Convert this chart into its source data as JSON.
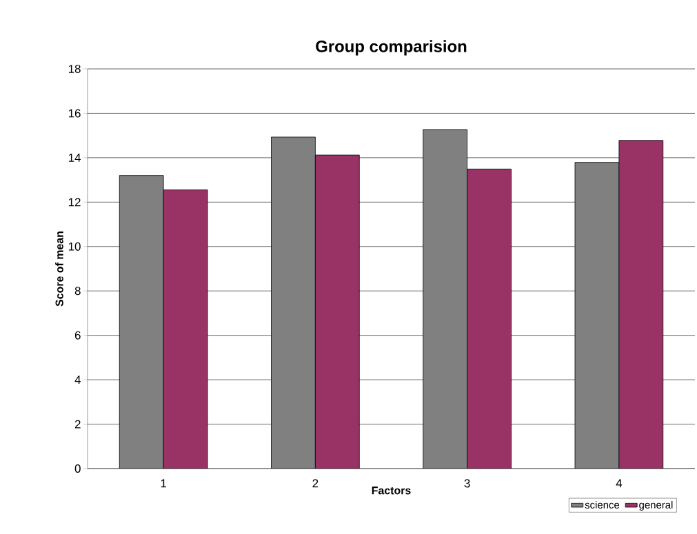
{
  "chart_data": {
    "type": "bar",
    "title": "Group comparision",
    "xlabel": "Factors",
    "ylabel": "Score of mean",
    "categories": [
      "1",
      "2",
      "3",
      "4"
    ],
    "series": [
      {
        "name": "science",
        "color": "#808080",
        "values": [
          13.2,
          14.93,
          15.27,
          13.79
        ]
      },
      {
        "name": "general",
        "color": "#993366",
        "values": [
          12.55,
          14.12,
          13.49,
          14.78
        ]
      }
    ],
    "ylim": [
      0,
      18
    ],
    "yticks": [
      0,
      2,
      4,
      6,
      8,
      10,
      12,
      14,
      16,
      18
    ],
    "grid": "y",
    "legend": "bottom right"
  }
}
